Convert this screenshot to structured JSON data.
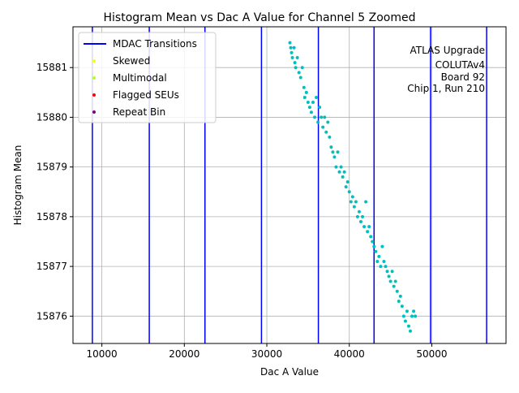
{
  "chart_data": {
    "type": "scatter",
    "title": "Histogram Mean vs Dac A Value for Channel 5 Zoomed",
    "xlabel": "Dac A Value",
    "ylabel": "Histogram Mean",
    "xlim": [
      6500,
      59000
    ],
    "ylim": [
      15875.45,
      15881.82
    ],
    "x_ticks": [
      10000,
      20000,
      30000,
      40000,
      50000
    ],
    "x_tick_labels": [
      "10000",
      "20000",
      "30000",
      "40000",
      "50000"
    ],
    "y_ticks": [
      15876,
      15877,
      15878,
      15879,
      15880,
      15881
    ],
    "y_tick_labels": [
      "15876",
      "15877",
      "15878",
      "15879",
      "15880",
      "15881"
    ],
    "grid": true,
    "legend_position": "top-left",
    "legend": [
      {
        "label": "MDAC Transitions",
        "marker": "line",
        "color": "#0000ff"
      },
      {
        "label": "Skewed",
        "marker": "dot",
        "color": "#ffff00"
      },
      {
        "label": "Multimodal",
        "marker": "dot",
        "color": "#adff2f"
      },
      {
        "label": "Flagged SEUs",
        "marker": "dot",
        "color": "#ff0000"
      },
      {
        "label": "Repeat Bin",
        "marker": "dot",
        "color": "#800080"
      }
    ],
    "annotation": [
      "ATLAS Upgrade",
      "COLUTAv4",
      "Board 92",
      "Chip 1, Run 210"
    ],
    "mdac_transitions": [
      8850,
      15750,
      22500,
      29350,
      36250,
      43000,
      49850,
      56650
    ],
    "series": [
      {
        "color": "#00bfbf",
        "points": [
          [
            32800,
            15881.5
          ],
          [
            32900,
            15881.4
          ],
          [
            33000,
            15881.3
          ],
          [
            33100,
            15881.2
          ],
          [
            33300,
            15881.4
          ],
          [
            33400,
            15881.1
          ],
          [
            33500,
            15881.0
          ],
          [
            33700,
            15881.2
          ],
          [
            33900,
            15880.9
          ],
          [
            34100,
            15880.8
          ],
          [
            34300,
            15881.0
          ],
          [
            34500,
            15880.6
          ],
          [
            34600,
            15880.4
          ],
          [
            34800,
            15880.5
          ],
          [
            35000,
            15880.3
          ],
          [
            35200,
            15880.2
          ],
          [
            35400,
            15880.1
          ],
          [
            35600,
            15880.3
          ],
          [
            35800,
            15880.0
          ],
          [
            36000,
            15880.4
          ],
          [
            36200,
            15879.9
          ],
          [
            36400,
            15880.2
          ],
          [
            36600,
            15880.0
          ],
          [
            36800,
            15879.8
          ],
          [
            37000,
            15880.0
          ],
          [
            37200,
            15879.7
          ],
          [
            37400,
            15879.9
          ],
          [
            37600,
            15879.6
          ],
          [
            37800,
            15879.4
          ],
          [
            38000,
            15879.3
          ],
          [
            38200,
            15879.2
          ],
          [
            38400,
            15879.0
          ],
          [
            38600,
            15879.3
          ],
          [
            38800,
            15878.9
          ],
          [
            39000,
            15879.0
          ],
          [
            39200,
            15878.8
          ],
          [
            39400,
            15878.9
          ],
          [
            39600,
            15878.6
          ],
          [
            39800,
            15878.7
          ],
          [
            40000,
            15878.5
          ],
          [
            40200,
            15878.3
          ],
          [
            40400,
            15878.4
          ],
          [
            40600,
            15878.2
          ],
          [
            40800,
            15878.3
          ],
          [
            41000,
            15878.0
          ],
          [
            41200,
            15878.1
          ],
          [
            41400,
            15877.9
          ],
          [
            41600,
            15878.0
          ],
          [
            41800,
            15877.8
          ],
          [
            42000,
            15878.3
          ],
          [
            42200,
            15877.7
          ],
          [
            42400,
            15877.8
          ],
          [
            42600,
            15877.6
          ],
          [
            42800,
            15877.5
          ],
          [
            43000,
            15877.4
          ],
          [
            43200,
            15877.3
          ],
          [
            43400,
            15877.1
          ],
          [
            43600,
            15877.2
          ],
          [
            43800,
            15877.0
          ],
          [
            44000,
            15877.4
          ],
          [
            44200,
            15877.1
          ],
          [
            44400,
            15877.0
          ],
          [
            44600,
            15876.9
          ],
          [
            44800,
            15876.8
          ],
          [
            45000,
            15876.7
          ],
          [
            45200,
            15876.9
          ],
          [
            45400,
            15876.6
          ],
          [
            45600,
            15876.7
          ],
          [
            45800,
            15876.5
          ],
          [
            46000,
            15876.3
          ],
          [
            46200,
            15876.4
          ],
          [
            46400,
            15876.2
          ],
          [
            46600,
            15876.0
          ],
          [
            46800,
            15875.9
          ],
          [
            47000,
            15876.1
          ],
          [
            47200,
            15875.8
          ],
          [
            47400,
            15875.7
          ],
          [
            47600,
            15876.0
          ],
          [
            47800,
            15876.1
          ],
          [
            48000,
            15876.0
          ]
        ]
      }
    ]
  }
}
